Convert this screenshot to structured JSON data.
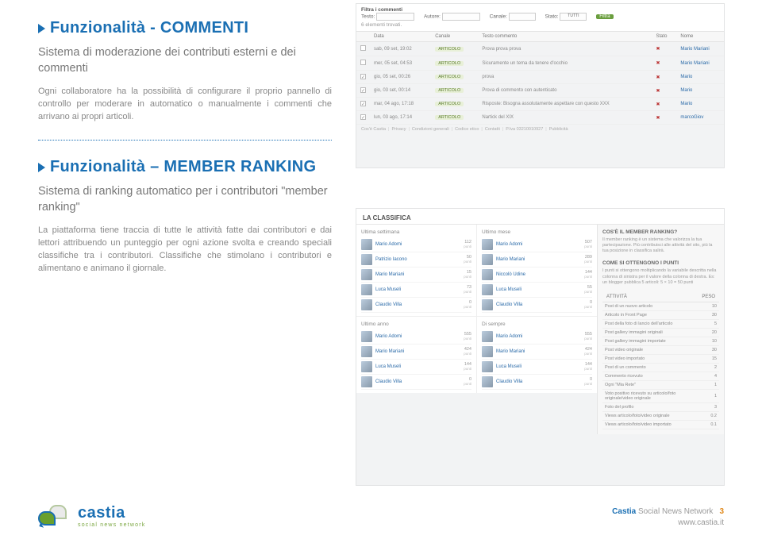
{
  "section1": {
    "title": "Funzionalità - COMMENTI",
    "subtitle": "Sistema di moderazione dei contributi esterni e dei commenti",
    "body": "Ogni collaboratore ha la possibilità di configurare il proprio pannello di controllo per moderare in automatico o manualmente i commenti che arrivano ai propri articoli."
  },
  "section2": {
    "title": "Funzionalità – MEMBER RANKING",
    "subtitle": "Sistema di ranking automatico per i contributori \"member ranking\"",
    "body": "La piattaforma tiene traccia di tutte le attività fatte dai contributori e dai lettori attribuendo un punteggio per ogni azione svolta e creando speciali classifiche tra i contributori. Classifiche che stimolano i contributori e alimentano e animano il giornale."
  },
  "shot1": {
    "filter_title": "Filtra i commenti",
    "labels": {
      "testo": "Testo:",
      "autore": "Autore:",
      "canale": "Canale:",
      "stato": "Stato:"
    },
    "stato_value": "TUTTI",
    "filter_button": "Filtra",
    "count": "6 elementi trovati.",
    "columns": [
      "Data",
      "Canale",
      "Testo commento",
      "Stato",
      "Nome"
    ],
    "rows": [
      {
        "data": "sab, 09 set, 19:02",
        "canale": "ARTICOLO",
        "testo": "Prova prova prova",
        "stato": "",
        "nome": "Mario Mariani",
        "ck": false
      },
      {
        "data": "mer, 05 set, 04:53",
        "canale": "ARTICOLO",
        "testo": "Sicuramente un tema da tenere d'occhio",
        "stato": "",
        "nome": "Mario Mariani",
        "ck": false
      },
      {
        "data": "gio, 05 set, 00:26",
        "canale": "ARTICOLO",
        "testo": "prova",
        "stato": "",
        "nome": "Mario",
        "ck": true
      },
      {
        "data": "gio, 03 set, 00:14",
        "canale": "ARTICOLO",
        "testo": "Prova di commento con autenticato",
        "stato": "",
        "nome": "Mario",
        "ck": true
      },
      {
        "data": "mar, 04 ago, 17:18",
        "canale": "ARTICOLO",
        "testo": "Risposte: Bisogna assolutamente aspettare con questo XXX",
        "stato": "",
        "nome": "Mario",
        "ck": true
      },
      {
        "data": "lun, 03 ago, 17:14",
        "canale": "ARTICOLO",
        "testo": "Nartick del XIX",
        "stato": "",
        "nome": "marcoGiov",
        "ck": true
      }
    ],
    "footer_links": [
      "Cos'è Castia",
      "Privacy",
      "Condizioni generali",
      "Codice etico",
      "Contatti",
      "P.Iva 03210010927",
      "Pubblicità"
    ]
  },
  "shot2": {
    "title": "LA CLASSIFICA",
    "col_heads": [
      "Ultima settimana",
      "Ultimo mese",
      "Ultimo anno",
      "Di sempre"
    ],
    "rank_sets": [
      [
        {
          "nm": "Mario Adomi",
          "pt": "112"
        },
        {
          "nm": "Patrizio Iacono",
          "pt": "50"
        },
        {
          "nm": "Mario Mariani",
          "pt": "15"
        },
        {
          "nm": "Luca Museli",
          "pt": "73"
        },
        {
          "nm": "Claudio Villa",
          "pt": "0"
        }
      ],
      [
        {
          "nm": "Mario Adomi",
          "pt": "507"
        },
        {
          "nm": "Mario Mariani",
          "pt": "289"
        },
        {
          "nm": "Niccolò Udine",
          "pt": "144"
        },
        {
          "nm": "Luca Museli",
          "pt": "55"
        },
        {
          "nm": "Claudio Villa",
          "pt": "0"
        }
      ],
      [
        {
          "nm": "Mario Adomi",
          "pt": "555"
        },
        {
          "nm": "Mario Mariani",
          "pt": "424"
        },
        {
          "nm": "Luca Museli",
          "pt": "144"
        },
        {
          "nm": "Claudio Villa",
          "pt": "0"
        }
      ],
      [
        {
          "nm": "Mario Adomi",
          "pt": "555"
        },
        {
          "nm": "Mario Mariani",
          "pt": "424"
        },
        {
          "nm": "Luca Museli",
          "pt": "144"
        },
        {
          "nm": "Claudio Villa",
          "pt": "0"
        }
      ]
    ],
    "side1_title": "COS'È IL MEMBER RANKING?",
    "side1_body": "Il member ranking è un sistema che valorizza la tua partecipazione. Più contribuisci alle attività del sito, più la tua posizione in classifica salirà.",
    "side2_title": "COME SI OTTENGONO I PUNTI",
    "side2_body": "I punti si ottengono moltiplicando la variabile descritta nella colonna di sinistra per il valore della colonna di destra. Es: un blogger pubblica 5 articoli: 5 × 10 = 50 punti",
    "act_head": [
      "ATTIVITÀ",
      "PESO"
    ],
    "activities": [
      [
        "Post di un nuovo articolo",
        "10"
      ],
      [
        "Articolo in Front Page",
        "30"
      ],
      [
        "Post della foto di lancio dell'articolo",
        "5"
      ],
      [
        "Post gallery immagini originali",
        "20"
      ],
      [
        "Post gallery immagini importate",
        "10"
      ],
      [
        "Post video originale",
        "30"
      ],
      [
        "Post video importato",
        "15"
      ],
      [
        "Post di un commento",
        "2"
      ],
      [
        "Commento ricevuto",
        "4"
      ],
      [
        "Ogni \"Mia Rete\"",
        "1"
      ],
      [
        "Voto positivo ricevuto su articolo/foto originale/video originale",
        "1"
      ],
      [
        "Foto del profilo",
        "3"
      ],
      [
        "Views articolo/foto/video originale",
        "0.2"
      ],
      [
        "Views articolo/foto/video importato",
        "0.1"
      ]
    ],
    "punti_label": "punti"
  },
  "footer": {
    "brand": "castia",
    "tagline": "social news network",
    "line1_bold": "Castia",
    "line1_rest": "Social News Network",
    "url": "www.castia.it",
    "page": "3"
  }
}
